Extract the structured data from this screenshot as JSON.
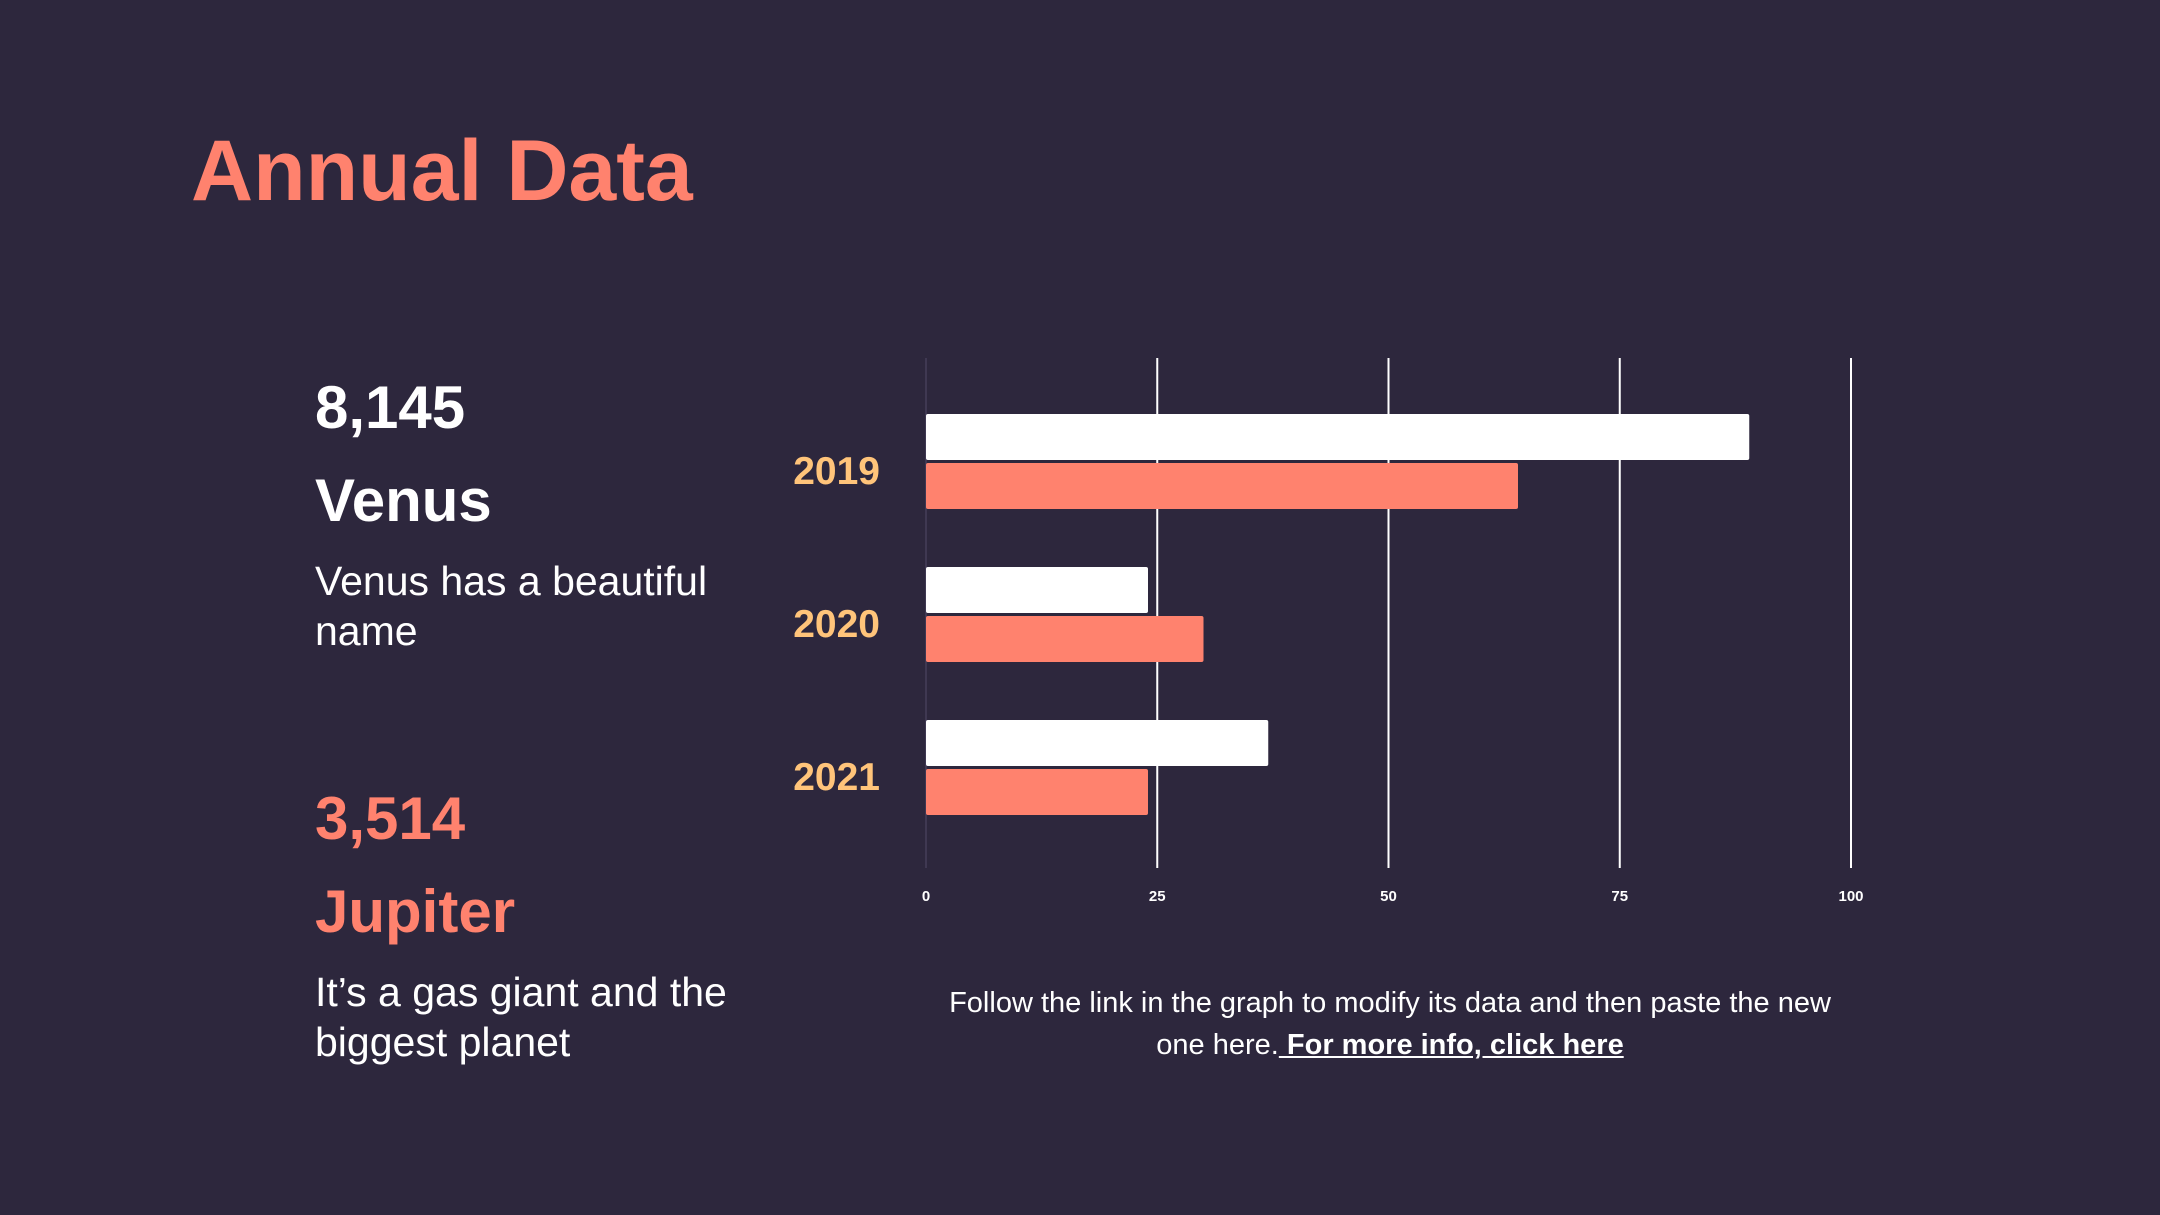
{
  "title": "Annual Data",
  "stats": [
    {
      "number": "8,145",
      "name": "Venus",
      "desc": "Venus has a beautiful name",
      "color": "#ffffff"
    },
    {
      "number": "3,514",
      "name": "Jupiter",
      "desc": "It’s a gas giant and the biggest planet",
      "color": "#ff826e"
    }
  ],
  "caption": {
    "text": "Follow the link in the graph to modify its data and then paste the new one here.",
    "link_label": " For more info, click here"
  },
  "colors": {
    "background": "#2d273d",
    "accent": "#ff826e",
    "year_label": "#ffc47a",
    "bar_white": "#ffffff"
  },
  "chart_data": {
    "type": "bar",
    "orientation": "horizontal",
    "categories": [
      "2019",
      "2020",
      "2021"
    ],
    "series": [
      {
        "values": [
          89,
          24,
          37
        ],
        "color": "#ffffff"
      },
      {
        "values": [
          64,
          30,
          24
        ],
        "color": "#ff826e"
      }
    ],
    "xlim": [
      0,
      100
    ],
    "xticks": [
      "0",
      "25",
      "50",
      "75",
      "100"
    ],
    "grid": true
  }
}
